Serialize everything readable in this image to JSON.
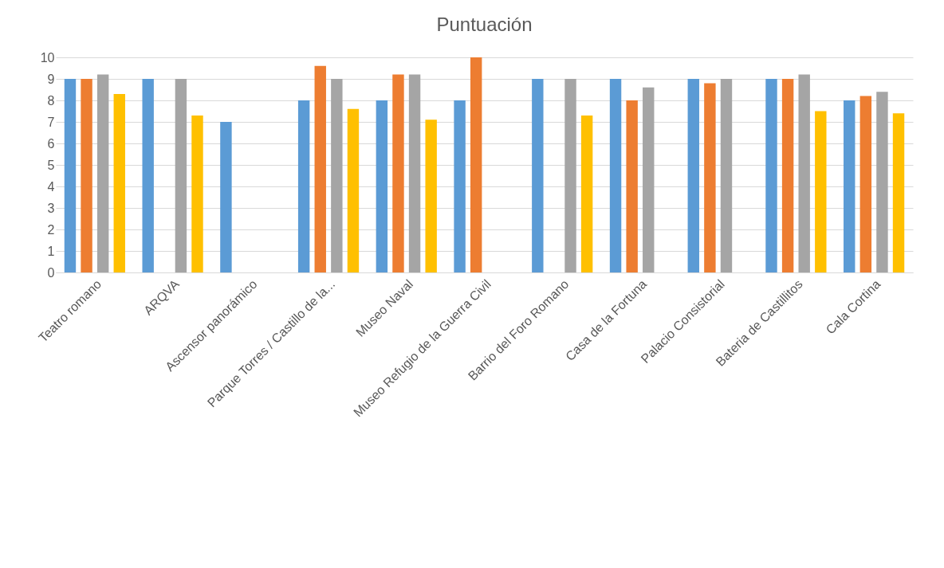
{
  "chart_data": {
    "type": "bar",
    "title": "Puntuación",
    "categories": [
      "Teatro romano",
      "ARQVA",
      "Ascensor panorámico",
      "Parque Torres / Castillo de la...",
      "Museo Naval",
      "Museo Refugio de la Guerra Civil",
      "Barrio del Foro Romano",
      "Casa de la Fortuna",
      "Palacio Consistorial",
      "Bateria de Castillitos",
      "Cala Cortina"
    ],
    "series": [
      {
        "color": "#5b9bd5",
        "values": [
          9,
          9,
          7,
          8,
          8,
          8,
          9,
          9,
          9,
          9,
          8
        ]
      },
      {
        "color": "#ed7d31",
        "values": [
          9,
          null,
          null,
          9.6,
          9.2,
          10,
          null,
          8,
          8.8,
          9,
          8.2
        ]
      },
      {
        "color": "#a5a5a5",
        "values": [
          9.2,
          9,
          null,
          9,
          9.2,
          null,
          9,
          8.6,
          9,
          9.2,
          8.4
        ]
      },
      {
        "color": "#ffc000",
        "values": [
          8.3,
          7.3,
          null,
          7.6,
          7.1,
          null,
          7.3,
          null,
          null,
          7.5,
          7.4
        ]
      }
    ],
    "ylim": [
      0,
      10
    ],
    "yticks": [
      0,
      1,
      2,
      3,
      4,
      5,
      6,
      7,
      8,
      9,
      10
    ],
    "grid": "y"
  }
}
